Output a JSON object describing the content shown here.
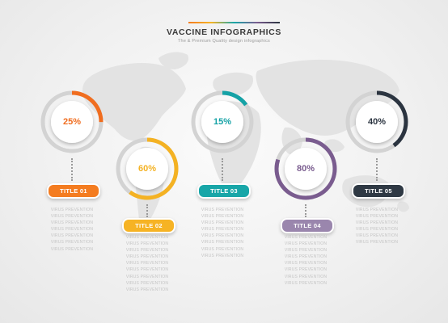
{
  "header": {
    "title": "VACCINE INFOGRAPHICS",
    "subtitle": "The & Premium Quality design infographics",
    "rule_colors": [
      "#f47c20",
      "#f6b324",
      "#18a6a8",
      "#7a5c8f",
      "#2b3440"
    ]
  },
  "items": [
    {
      "percent": "25%",
      "value": 25,
      "title": "TITLE 01",
      "color": "#f06d1f",
      "pill_color": "#f47c20",
      "lines": [
        "VIRUS PREVENTION",
        "VIRUS PREVENTION",
        "VIRUS PREVENTION",
        "VIRUS PREVENTION",
        "VIRUS PREVENTION",
        "VIRUS PREVENTION",
        "VIRUS PREVENTION"
      ]
    },
    {
      "percent": "60%",
      "value": 60,
      "title": "TITLE 02",
      "color": "#f4b223",
      "pill_color": "#f6b324",
      "lines": [
        "VIRUS PREVENTION",
        "VIRUS PREVENTION",
        "VIRUS PREVENTION",
        "VIRUS PREVENTION",
        "VIRUS PREVENTION",
        "VIRUS PREVENTION",
        "VIRUS PREVENTION",
        "VIRUS PREVENTION",
        "VIRUS PREVENTION"
      ]
    },
    {
      "percent": "15%",
      "value": 15,
      "title": "TITLE 03",
      "color": "#15a2a6",
      "pill_color": "#18a6a8",
      "lines": [
        "VIRUS PREVENTION",
        "VIRUS PREVENTION",
        "VIRUS PREVENTION",
        "VIRUS PREVENTION",
        "VIRUS PREVENTION",
        "VIRUS PREVENTION",
        "VIRUS PREVENTION",
        "VIRUS PREVENTION"
      ]
    },
    {
      "percent": "80%",
      "value": 80,
      "title": "TITLE 04",
      "color": "#7a5c8f",
      "pill_color": "#9a86ad",
      "lines": [
        "VIRUS PREVENTION",
        "VIRUS PREVENTION",
        "VIRUS PREVENTION",
        "VIRUS PREVENTION",
        "VIRUS PREVENTION",
        "VIRUS PREVENTION",
        "VIRUS PREVENTION",
        "VIRUS PREVENTION"
      ]
    },
    {
      "percent": "40%",
      "value": 40,
      "title": "TITLE 05",
      "color": "#2b3440",
      "pill_color": "#2f3944",
      "lines": [
        "VIRUS PREVENTION",
        "VIRUS PREVENTION",
        "VIRUS PREVENTION",
        "VIRUS PREVENTION",
        "VIRUS PREVENTION",
        "VIRUS PREVENTION"
      ]
    }
  ]
}
